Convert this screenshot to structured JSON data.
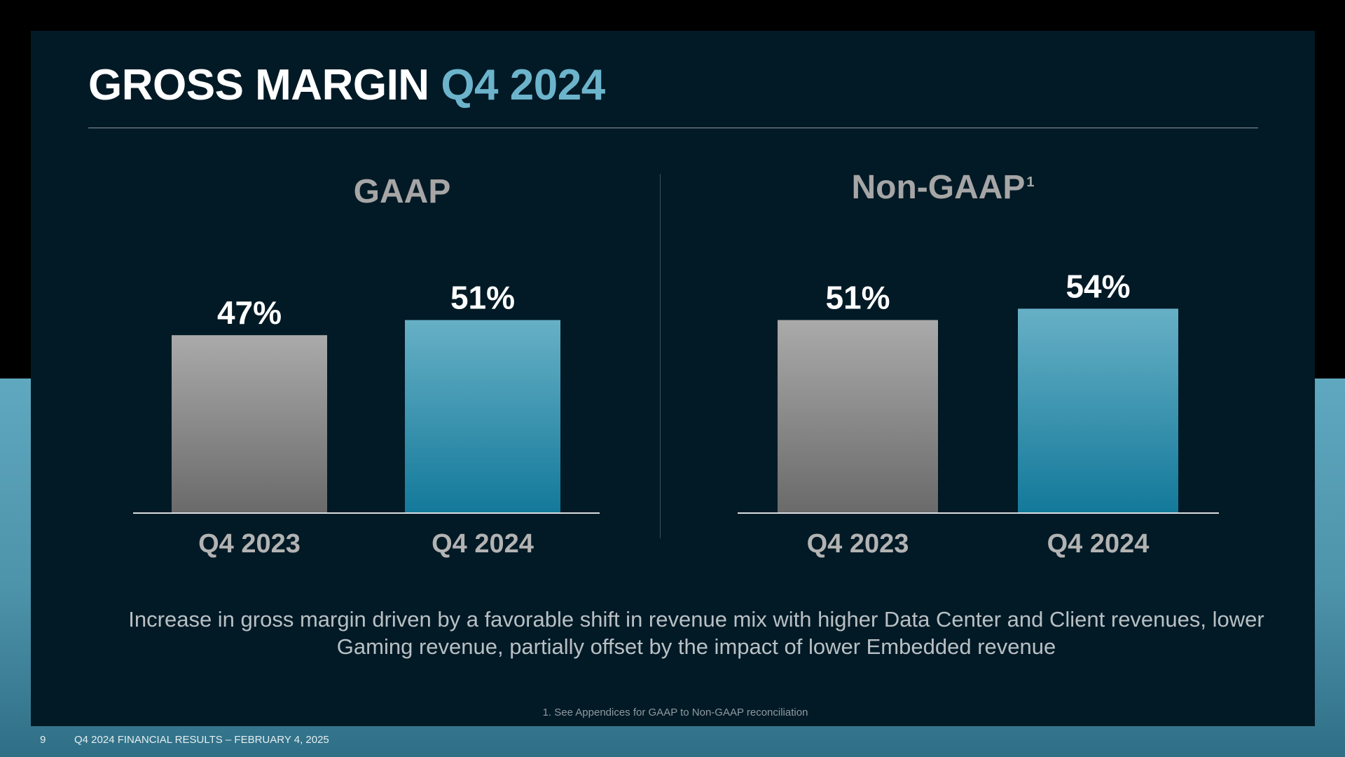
{
  "title": {
    "main": "GROSS MARGIN",
    "accent": "Q4 2024"
  },
  "colors": {
    "prior": "#a9a9a9",
    "current": "#5aa8c2",
    "accent": "#6cb4cc"
  },
  "chart_data": [
    {
      "type": "bar",
      "title": "GAAP",
      "title_sup": "",
      "categories": [
        "Q4 2023",
        "Q4 2024"
      ],
      "values": [
        47,
        51
      ],
      "labels": [
        "47%",
        "51%"
      ],
      "unit": "%"
    },
    {
      "type": "bar",
      "title": "Non-GAAP",
      "title_sup": "1",
      "categories": [
        "Q4 2023",
        "Q4 2024"
      ],
      "values": [
        51,
        54
      ],
      "labels": [
        "51%",
        "54%"
      ],
      "unit": "%"
    }
  ],
  "note": "Increase in gross margin driven by a favorable shift in revenue mix with higher Data Center and Client revenues, lower Gaming revenue, partially offset by the impact of lower Embedded revenue",
  "footnote": "1. See Appendices for GAAP to Non-GAAP reconciliation",
  "footer": {
    "page": "9",
    "text": "Q4 2024 FINANCIAL RESULTS – FEBRUARY 4, 2025"
  }
}
